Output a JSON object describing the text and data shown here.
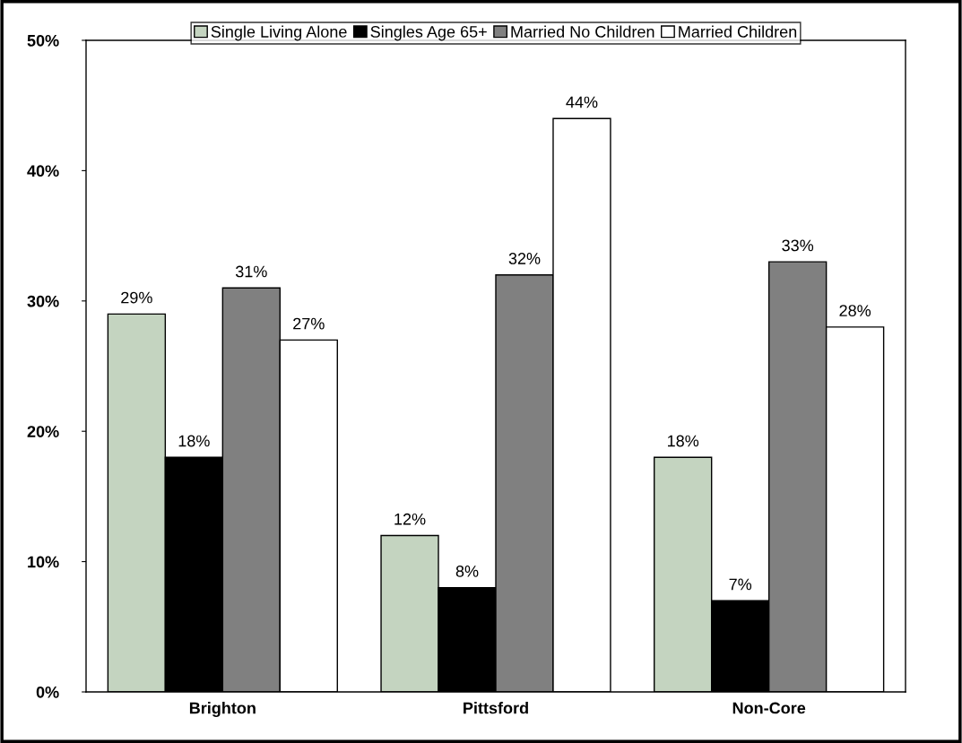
{
  "chart_data": {
    "type": "bar",
    "categories": [
      "Brighton",
      "Pittsford",
      "Non-Core"
    ],
    "series": [
      {
        "name": "Single Living Alone",
        "color": "#c4d4c0",
        "values": [
          29,
          12,
          18
        ],
        "value_labels": [
          "29%",
          "12%",
          "18%"
        ]
      },
      {
        "name": "Singles Age 65+",
        "color": "#000000",
        "values": [
          18,
          8,
          7
        ],
        "value_labels": [
          "18%",
          "8%",
          "7%"
        ]
      },
      {
        "name": "Married No Children",
        "color": "#808080",
        "values": [
          31,
          32,
          33
        ],
        "value_labels": [
          "31%",
          "32%",
          "33%"
        ]
      },
      {
        "name": "Married Children",
        "color": "#ffffff",
        "values": [
          27,
          44,
          28
        ],
        "value_labels": [
          "27%",
          "44%",
          "28%"
        ]
      }
    ],
    "ylim": [
      0,
      50
    ],
    "yticks": [
      {
        "value": 0,
        "label": "0%"
      },
      {
        "value": 10,
        "label": "10%"
      },
      {
        "value": 20,
        "label": "20%"
      },
      {
        "value": 30,
        "label": "30%"
      },
      {
        "value": 40,
        "label": "40%"
      },
      {
        "value": 50,
        "label": "50%"
      }
    ],
    "grid": false,
    "legend": "top"
  }
}
